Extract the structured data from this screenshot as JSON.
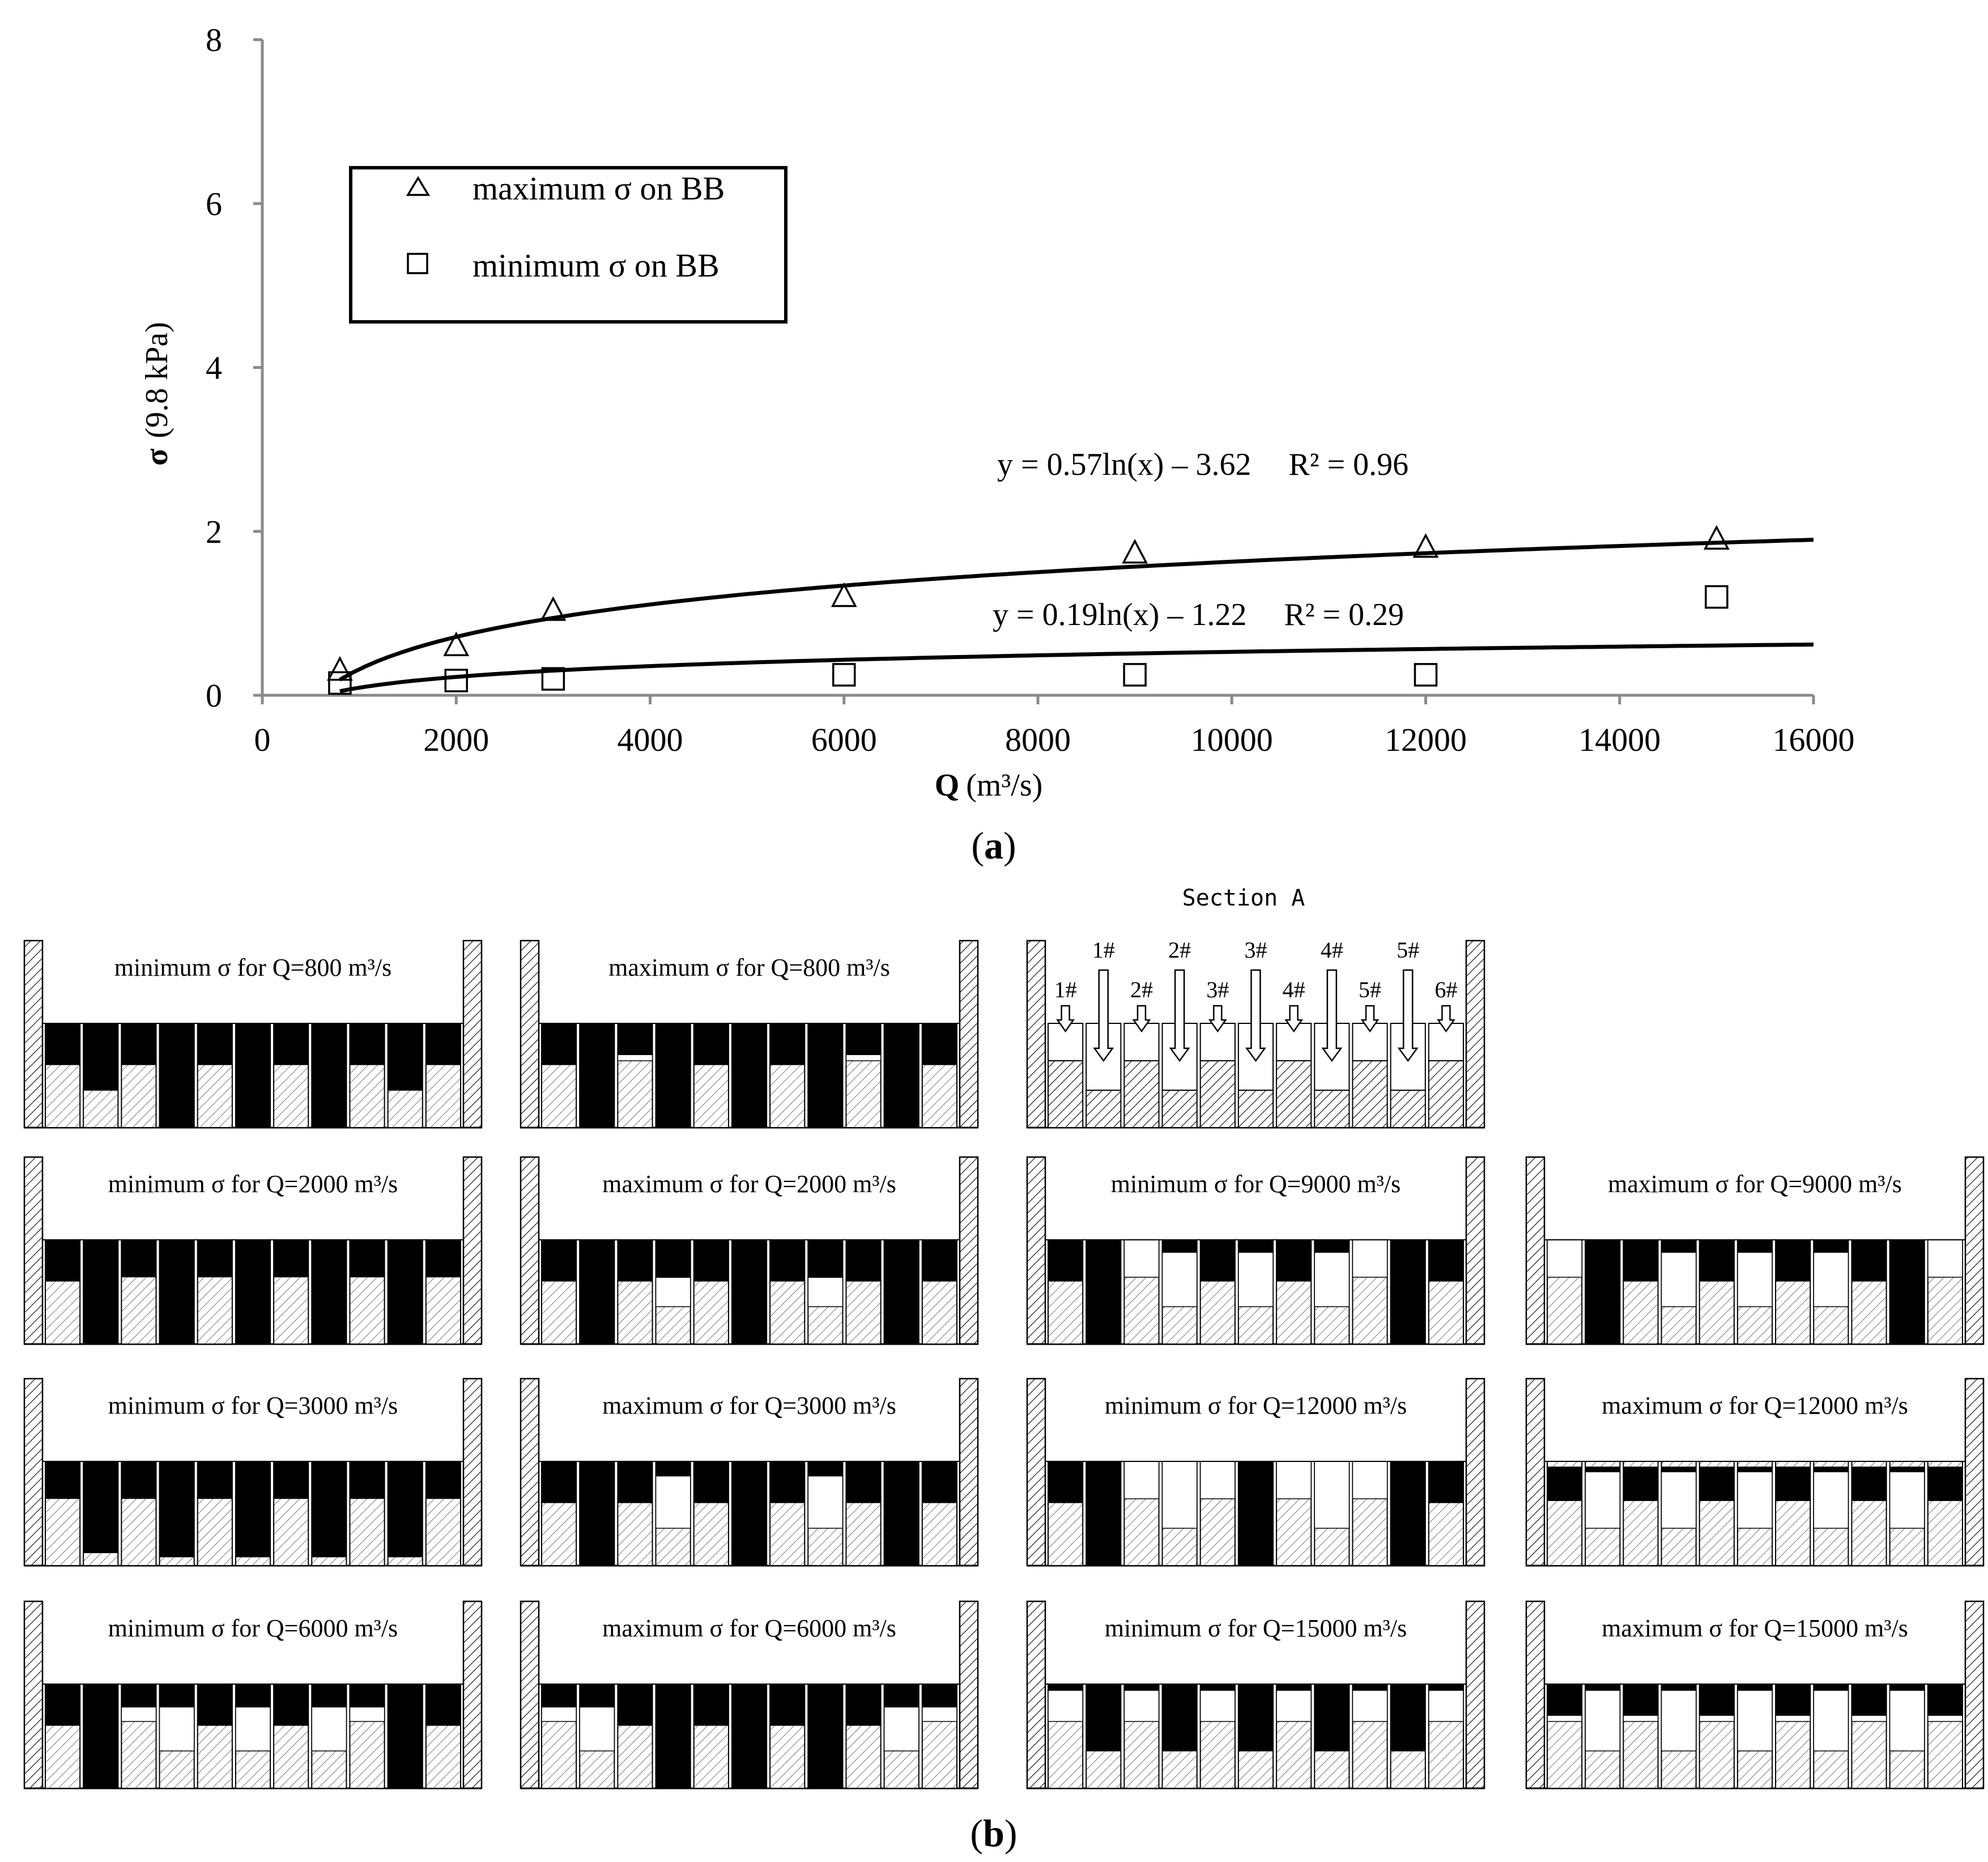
{
  "chart_data": {
    "type": "scatter",
    "xlabel": "Q",
    "xlabel_unit": "(m³/s)",
    "ylabel": "σ",
    "ylabel_unit": "(9.8 kPa)",
    "xlim": [
      0,
      16000
    ],
    "ylim": [
      0,
      8
    ],
    "x_ticks": [
      "0",
      "2000",
      "4000",
      "6000",
      "8000",
      "10000",
      "12000",
      "14000",
      "16000"
    ],
    "y_ticks": [
      "0",
      "2",
      "4",
      "6",
      "8"
    ],
    "grid": false,
    "legend_position": "top-left",
    "series": [
      {
        "name": "maximum σ on BB",
        "marker": "triangle",
        "x": [
          800,
          2000,
          3000,
          6000,
          9000,
          12000,
          15000
        ],
        "y": [
          0.3,
          0.6,
          1.03,
          1.2,
          1.73,
          1.8,
          1.9
        ],
        "trendline": {
          "a": 0.57,
          "b": -3.62,
          "equation": "y = 0.57ln(x) – 3.62",
          "r2": "R² = 0.96"
        }
      },
      {
        "name": "minimum  σ on BB",
        "marker": "square",
        "x": [
          800,
          2000,
          3000,
          6000,
          9000,
          12000,
          15000
        ],
        "y": [
          0.15,
          0.18,
          0.2,
          0.25,
          0.25,
          0.25,
          1.2
        ],
        "trendline": {
          "a": 0.19,
          "b": -1.22,
          "equation": "y = 0.19ln(x) – 1.22",
          "r2": "R² = 0.29"
        }
      }
    ]
  },
  "caption_a": {
    "open": "(",
    "letter": "a",
    "close": ")"
  },
  "caption_b": {
    "open": "(",
    "letter": "b",
    "close": ")"
  },
  "section_a": {
    "title": "Section A",
    "deep_labels": [
      "1#",
      "2#",
      "3#",
      "4#",
      "5#"
    ],
    "shallow_labels": [
      "1#",
      "2#",
      "3#",
      "4#",
      "5#",
      "6#"
    ]
  },
  "schematic_note": "Block states per panel (11 blocks, left to right). Each cell: [top of black zone, bottom of black zone] as depth fractions 0-1 below the crest, or null for no black zone.",
  "panels": [
    {
      "title": "minimum σ for Q=800 m³/s",
      "blocks": [
        [
          0,
          0.4
        ],
        [
          0,
          0.64
        ],
        [
          0,
          0.4
        ],
        [
          0,
          1
        ],
        [
          0,
          0.4
        ],
        [
          0,
          1
        ],
        [
          0,
          0.4
        ],
        [
          0,
          1
        ],
        [
          0,
          0.4
        ],
        [
          0,
          0.64
        ],
        [
          0,
          0.4
        ]
      ]
    },
    {
      "title": "maximum σ for Q=800 m³/s",
      "blocks": [
        [
          0,
          0.4
        ],
        [
          0,
          1
        ],
        [
          0,
          0.3
        ],
        [
          0,
          1
        ],
        [
          0,
          0.4
        ],
        [
          0,
          1
        ],
        [
          0,
          0.4
        ],
        [
          0,
          1
        ],
        [
          0,
          0.3
        ],
        [
          0,
          1
        ],
        [
          0,
          0.4
        ]
      ]
    },
    {
      "title": "minimum σ for Q=2000 m³/s",
      "blocks": [
        [
          0,
          0.4
        ],
        [
          0,
          1
        ],
        [
          0,
          0.36
        ],
        [
          0,
          1
        ],
        [
          0,
          0.36
        ],
        [
          0,
          1
        ],
        [
          0,
          0.36
        ],
        [
          0,
          1
        ],
        [
          0,
          0.36
        ],
        [
          0,
          1
        ],
        [
          0,
          0.36
        ]
      ]
    },
    {
      "title": "maximum σ for Q=2000 m³/s",
      "blocks": [
        [
          0,
          0.4
        ],
        [
          0,
          1
        ],
        [
          0,
          0.4
        ],
        [
          0,
          0.36
        ],
        [
          0,
          0.4
        ],
        [
          0,
          1
        ],
        [
          0,
          0.4
        ],
        [
          0,
          0.36
        ],
        [
          0,
          0.4
        ],
        [
          0,
          1
        ],
        [
          0,
          0.4
        ]
      ]
    },
    {
      "title": "minimum σ for Q=3000 m³/s",
      "blocks": [
        [
          0,
          0.36
        ],
        [
          0,
          0.88
        ],
        [
          0,
          0.36
        ],
        [
          0,
          0.92
        ],
        [
          0,
          0.36
        ],
        [
          0,
          0.92
        ],
        [
          0,
          0.36
        ],
        [
          0,
          0.92
        ],
        [
          0,
          0.36
        ],
        [
          0,
          0.92
        ],
        [
          0,
          0.36
        ]
      ]
    },
    {
      "title": "maximum σ for Q=3000 m³/s",
      "blocks": [
        [
          0,
          0.4
        ],
        [
          0,
          1
        ],
        [
          0,
          0.4
        ],
        [
          0,
          0.14
        ],
        [
          0,
          0.4
        ],
        [
          0,
          1
        ],
        [
          0,
          0.4
        ],
        [
          0,
          0.14
        ],
        [
          0,
          0.4
        ],
        [
          0,
          1
        ],
        [
          0,
          0.4
        ]
      ]
    },
    {
      "title": "minimum σ for Q=6000 m³/s",
      "blocks": [
        [
          0,
          0.4
        ],
        [
          0,
          1
        ],
        [
          0,
          0.22
        ],
        [
          0,
          0.22
        ],
        [
          0,
          0.4
        ],
        [
          0,
          0.22
        ],
        [
          0,
          0.4
        ],
        [
          0,
          0.22
        ],
        [
          0,
          0.22
        ],
        [
          0,
          1
        ],
        [
          0,
          0.4
        ]
      ]
    },
    {
      "title": "maximum σ for Q=6000 m³/s",
      "blocks": [
        [
          0,
          0.22
        ],
        [
          0,
          0.22
        ],
        [
          0,
          0.4
        ],
        [
          0,
          1
        ],
        [
          0,
          0.4
        ],
        [
          0,
          1
        ],
        [
          0,
          0.4
        ],
        [
          0,
          1
        ],
        [
          0,
          0.4
        ],
        [
          0,
          0.22
        ],
        [
          0,
          0.22
        ]
      ]
    },
    {
      "title": "minimum σ for Q=9000 m³/s",
      "blocks": [
        [
          0,
          0.4
        ],
        [
          0,
          1
        ],
        [
          null,
          null
        ],
        [
          0,
          0.12
        ],
        [
          0,
          0.4
        ],
        [
          0,
          0.12
        ],
        [
          0,
          0.4
        ],
        [
          0,
          0.12
        ],
        [
          null,
          null
        ],
        [
          0,
          1
        ],
        [
          0,
          0.4
        ]
      ]
    },
    {
      "title": "maximum σ for Q=9000 m³/s",
      "blocks": [
        [
          null,
          null
        ],
        [
          0,
          1
        ],
        [
          0,
          0.4
        ],
        [
          0,
          0.12
        ],
        [
          0,
          0.4
        ],
        [
          0,
          0.12
        ],
        [
          0,
          0.4
        ],
        [
          0,
          0.12
        ],
        [
          0,
          0.4
        ],
        [
          0,
          1
        ],
        [
          null,
          null
        ]
      ]
    },
    {
      "title": "minimum σ for Q=12000 m³/s",
      "blocks": [
        [
          0,
          0.4
        ],
        [
          0,
          1
        ],
        [
          null,
          null
        ],
        [
          null,
          null
        ],
        [
          null,
          null
        ],
        [
          0,
          1
        ],
        [
          null,
          null
        ],
        [
          null,
          null
        ],
        [
          null,
          null
        ],
        [
          0,
          1
        ],
        [
          0,
          0.4
        ]
      ]
    },
    {
      "title": "maximum σ for Q=12000 m³/s",
      "blocks": [
        [
          0.05,
          0.38
        ],
        [
          0.05,
          0.1
        ],
        [
          0.05,
          0.38
        ],
        [
          0.05,
          0.1
        ],
        [
          0.05,
          0.38
        ],
        [
          0.05,
          0.1
        ],
        [
          0.05,
          0.38
        ],
        [
          0.05,
          0.1
        ],
        [
          0.05,
          0.38
        ],
        [
          0.05,
          0.1
        ],
        [
          0.05,
          0.38
        ]
      ]
    },
    {
      "title": "minimum σ for Q=15000 m³/s",
      "blocks": [
        [
          0,
          0.06
        ],
        [
          0,
          0.64
        ],
        [
          0,
          0.06
        ],
        [
          0,
          0.64
        ],
        [
          0,
          0.06
        ],
        [
          0,
          0.64
        ],
        [
          0,
          0.06
        ],
        [
          0,
          0.64
        ],
        [
          0,
          0.06
        ],
        [
          0,
          0.64
        ],
        [
          0,
          0.06
        ]
      ]
    },
    {
      "title": "maximum σ for Q=15000 m³/s",
      "blocks": [
        [
          0,
          0.3
        ],
        [
          0,
          0.06
        ],
        [
          0,
          0.3
        ],
        [
          0,
          0.06
        ],
        [
          0,
          0.3
        ],
        [
          0,
          0.06
        ],
        [
          0,
          0.3
        ],
        [
          0,
          0.06
        ],
        [
          0,
          0.3
        ],
        [
          0,
          0.06
        ],
        [
          0,
          0.3
        ]
      ]
    }
  ]
}
